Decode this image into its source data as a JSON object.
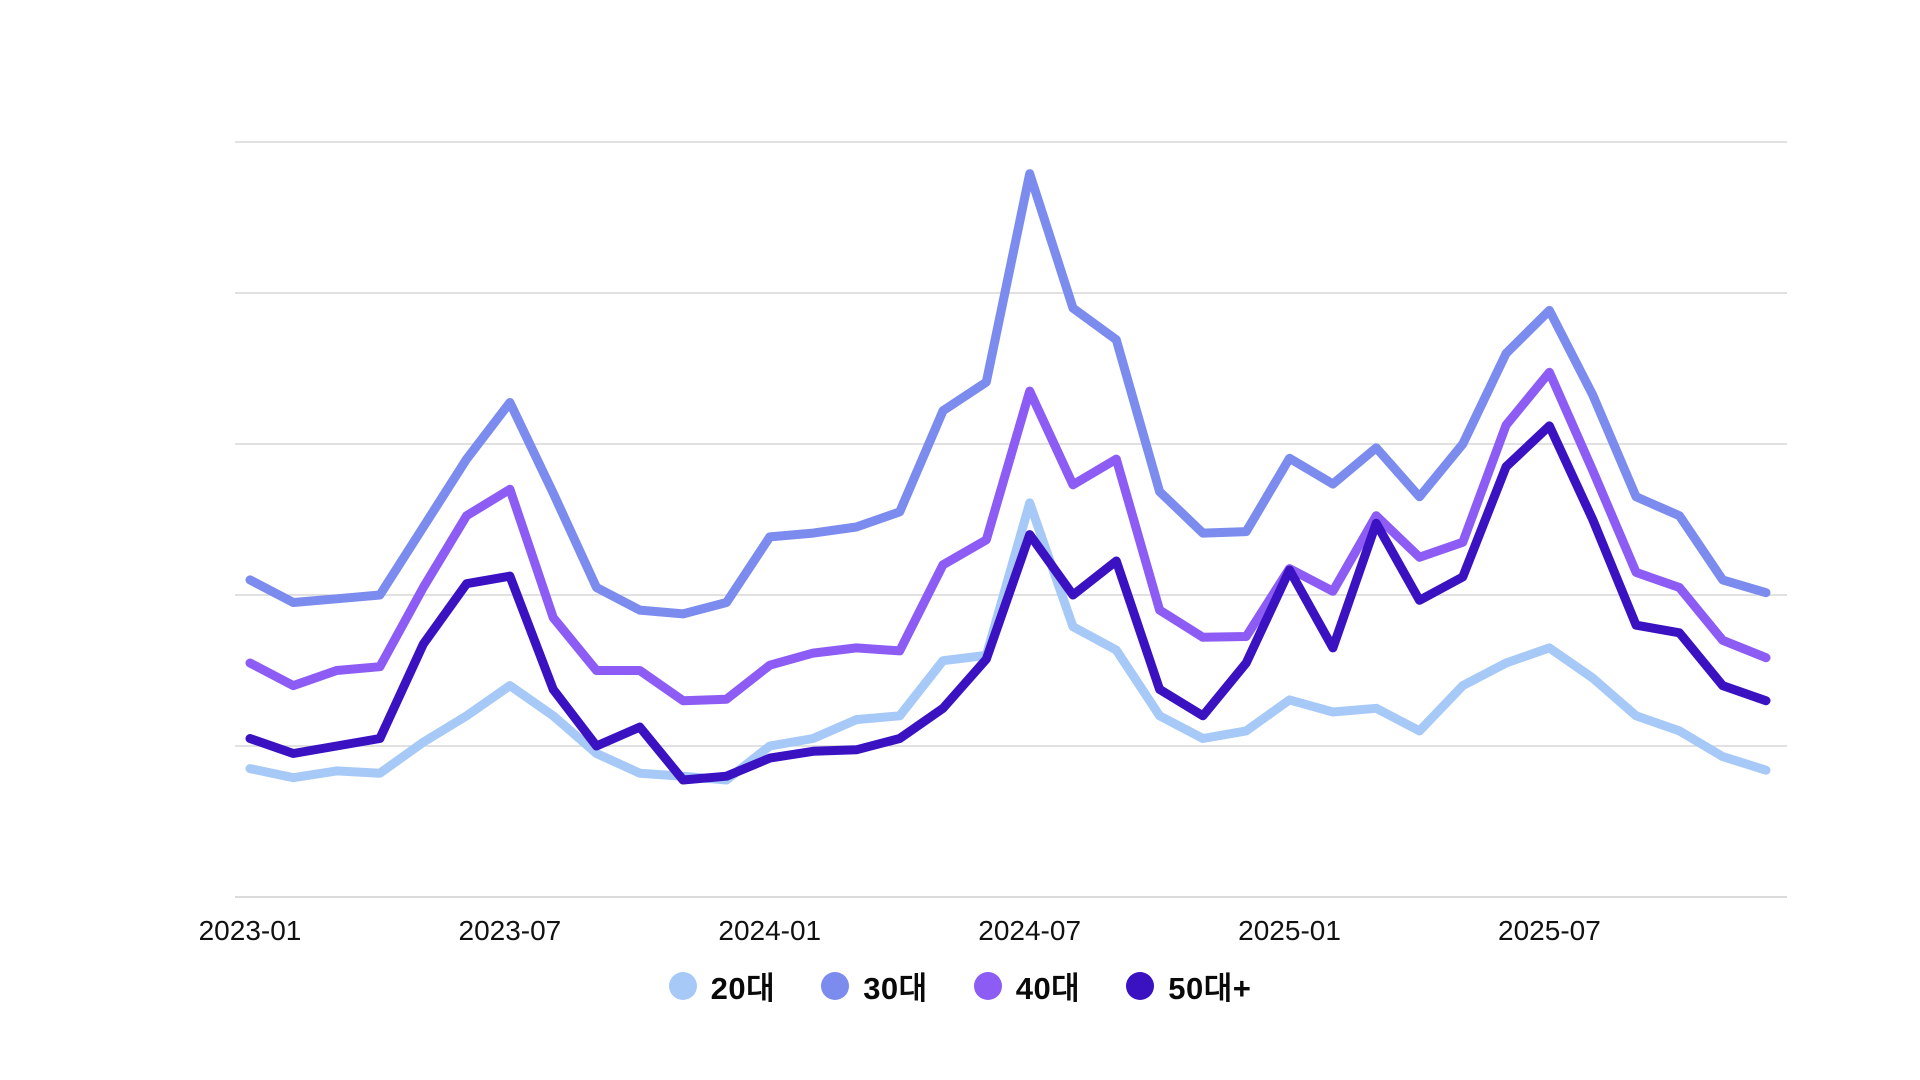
{
  "chart_data": {
    "type": "line",
    "title": "",
    "xlabel": "",
    "ylabel": "",
    "x": [
      "2023-01",
      "2023-02",
      "2023-03",
      "2023-04",
      "2023-05",
      "2023-06",
      "2023-07",
      "2023-08",
      "2023-09",
      "2023-10",
      "2023-11",
      "2023-12",
      "2024-01",
      "2024-02",
      "2024-03",
      "2024-04",
      "2024-05",
      "2024-06",
      "2024-07",
      "2024-08",
      "2024-09",
      "2024-10",
      "2024-11",
      "2024-12",
      "2025-01",
      "2025-02",
      "2025-03",
      "2025-04",
      "2025-05",
      "2025-06",
      "2025-07",
      "2025-08",
      "2025-09",
      "2025-10",
      "2025-11",
      "2025-12"
    ],
    "x_tick_labels": [
      "2023-01",
      "2023-07",
      "2024-01",
      "2024-07",
      "2025-01",
      "2025-07"
    ],
    "ylim": [
      0,
      100
    ],
    "grid": "horizontal",
    "gridline_values": [
      0,
      20,
      40,
      60,
      80,
      100
    ],
    "legend_position": "bottom-center",
    "series": [
      {
        "name": "20대",
        "color": "#A6C9F7",
        "values": [
          17,
          15.8,
          16.7,
          16.4,
          20.5,
          24,
          28,
          24,
          19,
          16.4,
          16,
          15.5,
          20,
          21,
          23.5,
          24,
          31.3,
          32,
          52.2,
          35.8,
          32.7,
          24,
          21,
          22,
          26.1,
          24.5,
          25,
          22,
          28,
          31,
          33,
          29,
          24,
          22,
          18.6,
          16.8
        ]
      },
      {
        "name": "30대",
        "color": "#7B8BEE",
        "values": [
          42,
          39,
          39.5,
          40,
          49,
          58,
          65.5,
          53.5,
          41,
          38,
          37.5,
          39,
          47.7,
          48.2,
          49,
          51,
          64.4,
          68.2,
          95.8,
          78,
          73.8,
          53.7,
          48.2,
          48.4,
          58.1,
          54.7,
          59.5,
          53,
          60,
          72,
          77.7,
          66.5,
          53,
          50.5,
          42,
          40.3
        ]
      },
      {
        "name": "40대",
        "color": "#8C5CF5",
        "values": [
          31,
          28,
          30,
          30.5,
          41,
          50.5,
          54,
          37,
          30,
          30,
          26,
          26.2,
          30.7,
          32.3,
          33,
          32.6,
          44,
          47.3,
          67,
          54.6,
          58,
          38,
          34.4,
          34.5,
          43.5,
          40.5,
          50.5,
          45,
          47,
          62.5,
          69.5,
          56.5,
          43,
          41,
          34,
          31.7
        ]
      },
      {
        "name": "50대+",
        "color": "#3B12C2",
        "values": [
          21,
          19,
          20,
          21,
          33.5,
          41.5,
          42.5,
          27.5,
          20,
          22.5,
          15.5,
          16,
          18.4,
          19.3,
          19.5,
          21,
          25,
          31.5,
          48,
          40,
          44.5,
          27.5,
          24,
          31,
          43.3,
          33,
          49.5,
          39.3,
          42.4,
          57,
          62.4,
          50,
          36,
          35,
          28,
          26
        ]
      }
    ]
  },
  "legend": {
    "items": [
      {
        "label": "20대",
        "color": "#A6C9F7"
      },
      {
        "label": "30대",
        "color": "#7B8BEE"
      },
      {
        "label": "40대",
        "color": "#8C5CF5"
      },
      {
        "label": "50대+",
        "color": "#3B12C2"
      }
    ]
  },
  "colors": {
    "background": "#FFFFFF",
    "gridline": "#D7D7D7",
    "axis_line": "#CFCFCF",
    "tick_text": "#111111"
  }
}
